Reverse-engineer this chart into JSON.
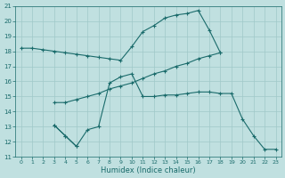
{
  "xlabel": "Humidex (Indice chaleur)",
  "xlim": [
    -0.5,
    23.5
  ],
  "ylim": [
    11,
    21
  ],
  "yticks": [
    11,
    12,
    13,
    14,
    15,
    16,
    17,
    18,
    19,
    20,
    21
  ],
  "xticks": [
    0,
    1,
    2,
    3,
    4,
    5,
    6,
    7,
    8,
    9,
    10,
    11,
    12,
    13,
    14,
    15,
    16,
    17,
    18,
    19,
    20,
    21,
    22,
    23
  ],
  "bg_color": "#c0e0e0",
  "line_color": "#1a6b6b",
  "grid_color": "#a0c8c8",
  "line1_x": [
    0,
    1,
    2,
    3,
    4,
    5,
    6,
    7,
    8,
    9,
    10,
    11,
    12,
    13,
    14,
    15,
    16,
    17,
    18
  ],
  "line1_y": [
    18.2,
    18.2,
    18.1,
    18.0,
    17.9,
    17.8,
    17.7,
    17.6,
    17.5,
    17.4,
    18.3,
    19.3,
    19.7,
    20.2,
    20.4,
    20.5,
    20.7,
    19.4,
    17.9
  ],
  "line2_x": [
    3,
    4,
    5,
    6,
    7,
    8,
    9,
    10,
    11,
    12,
    13,
    14,
    15,
    16,
    17,
    18
  ],
  "line2_y": [
    14.6,
    14.6,
    14.8,
    15.0,
    15.2,
    15.5,
    15.7,
    15.9,
    16.2,
    16.5,
    16.7,
    17.0,
    17.2,
    17.5,
    17.7,
    17.9
  ],
  "line3_x": [
    3,
    4,
    5,
    6,
    7,
    8,
    9,
    10,
    11,
    12,
    13,
    14,
    15,
    16,
    17,
    18,
    19,
    20,
    21,
    22,
    23
  ],
  "line3_y": [
    13.1,
    12.4,
    11.7,
    12.8,
    13.0,
    15.9,
    16.3,
    16.5,
    15.0,
    15.0,
    15.1,
    15.1,
    15.2,
    15.3,
    15.3,
    15.2,
    15.2,
    13.5,
    12.4,
    11.5,
    11.5
  ],
  "line4_x": [
    3,
    4,
    5
  ],
  "line4_y": [
    13.1,
    12.4,
    11.7
  ]
}
